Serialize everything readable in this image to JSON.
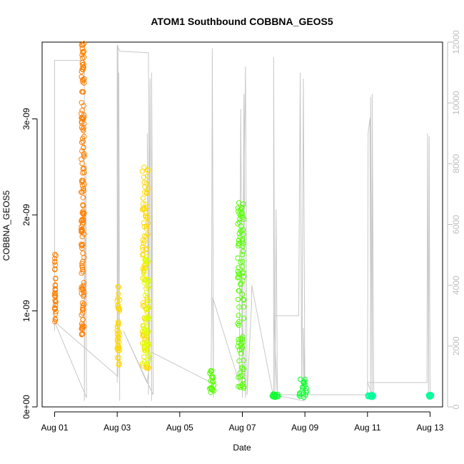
{
  "chart_data": {
    "type": "scatter",
    "title": "ATOM1 Southbound COBBNA_GEOS5",
    "xlabel": "Date",
    "ylabel": "COBBNA_GEOS5",
    "x_unit": "days from Aug 01",
    "xlim": [
      -0.4,
      12.4
    ],
    "ylim": [
      0,
      3.8e-09
    ],
    "ylim_right": [
      0,
      12000
    ],
    "x_ticks": [
      {
        "x": 0,
        "label": "Aug 01"
      },
      {
        "x": 2,
        "label": "Aug 03"
      },
      {
        "x": 4,
        "label": "Aug 05"
      },
      {
        "x": 6,
        "label": "Aug 07"
      },
      {
        "x": 8,
        "label": "Aug 09"
      },
      {
        "x": 10,
        "label": "Aug 11"
      },
      {
        "x": 12,
        "label": "Aug 13"
      }
    ],
    "y_ticks": [
      {
        "y": 0,
        "label": "0e+00"
      },
      {
        "y": 1e-09,
        "label": "1e-09"
      },
      {
        "y": 2e-09,
        "label": "2e-09"
      },
      {
        "y": 3e-09,
        "label": "3e-09"
      }
    ],
    "y_ticks_right": [
      {
        "y": 0,
        "label": "0"
      },
      {
        "y": 2000,
        "label": "2000"
      },
      {
        "y": 4000,
        "label": "4000"
      },
      {
        "y": 6000,
        "label": "6000"
      },
      {
        "y": 8000,
        "label": "8000"
      },
      {
        "y": 10000,
        "label": "10000"
      },
      {
        "y": 12000,
        "label": "12000"
      }
    ],
    "altitude_line_color": "#c8c8c8",
    "altitude_trace": [
      [
        0.0,
        2500
      ],
      [
        0.0,
        11400
      ],
      [
        0.95,
        11400
      ],
      [
        0.95,
        200
      ],
      [
        1.0,
        8000
      ],
      [
        1.02,
        300
      ],
      [
        0.0,
        2800
      ],
      [
        2.02,
        1000
      ],
      [
        2.05,
        11000
      ],
      [
        2.08,
        200
      ],
      [
        2.02,
        11900
      ],
      [
        2.0,
        800
      ],
      [
        2.0,
        11900
      ],
      [
        2.04,
        11800
      ],
      [
        2.08,
        11700
      ],
      [
        3.0,
        11650
      ],
      [
        3.04,
        1500
      ],
      [
        2.96,
        9000
      ],
      [
        3.0,
        400
      ],
      [
        3.05,
        10800
      ],
      [
        3.1,
        200
      ],
      [
        3.1,
        11000
      ],
      [
        3.15,
        400
      ],
      [
        2.2,
        2500
      ],
      [
        2.95,
        800
      ],
      [
        3.1,
        1800
      ],
      [
        5.0,
        800
      ],
      [
        5.02,
        3600
      ],
      [
        5.04,
        11800
      ],
      [
        5.08,
        300
      ],
      [
        5.05,
        3600
      ],
      [
        5.9,
        800
      ],
      [
        5.95,
        9800
      ],
      [
        6.0,
        300
      ],
      [
        6.05,
        10300
      ],
      [
        6.1,
        300
      ],
      [
        6.0,
        3000
      ],
      [
        6.1,
        11200
      ],
      [
        6.15,
        400
      ],
      [
        6.3,
        3500
      ],
      [
        6.3,
        4000
      ],
      [
        7.0,
        300
      ],
      [
        7.0,
        11500
      ],
      [
        7.04,
        300
      ],
      [
        7.08,
        6500
      ],
      [
        7.12,
        300
      ],
      [
        7.0,
        3000
      ],
      [
        7.8,
        3000
      ],
      [
        7.85,
        11000
      ],
      [
        7.9,
        300
      ],
      [
        7.95,
        10800
      ],
      [
        8.0,
        200
      ],
      [
        7.95,
        2600
      ],
      [
        7.96,
        200
      ],
      [
        7.0,
        400
      ],
      [
        10.0,
        400
      ],
      [
        10.02,
        9000
      ],
      [
        10.08,
        9500
      ],
      [
        10.1,
        300
      ],
      [
        10.1,
        10200
      ],
      [
        10.15,
        300
      ],
      [
        10.15,
        10300
      ],
      [
        10.2,
        300
      ],
      [
        10.0,
        800
      ],
      [
        11.9,
        800
      ],
      [
        11.92,
        9000
      ],
      [
        11.95,
        300
      ],
      [
        11.97,
        8900
      ],
      [
        12.0,
        300
      ]
    ],
    "series": [
      {
        "color": "#ff8000",
        "clusters": [
          {
            "x": [
              0.0,
              0.04
            ],
            "y": [
              8.5e-10,
              1.6e-09
            ]
          },
          {
            "x": [
              0.85,
              0.95
            ],
            "y": [
              7.5e-10,
              3.8e-09
            ]
          }
        ]
      },
      {
        "color": "#ffd800",
        "clusters": [
          {
            "x": [
              2.0,
              2.08
            ],
            "y": [
              3.8e-10,
              1.3e-09
            ]
          },
          {
            "x": [
              2.8,
              3.0
            ],
            "y": [
              4e-10,
              2.5e-09
            ]
          }
        ]
      },
      {
        "color": "#ddff00",
        "clusters": [
          {
            "x": [
              2.85,
              3.02
            ],
            "y": [
              4.5e-10,
              1.6e-09
            ]
          }
        ]
      },
      {
        "color": "#55ff00",
        "clusters": [
          {
            "x": [
              4.95,
              5.1
            ],
            "y": [
              1.4e-10,
              3.8e-10
            ]
          },
          {
            "x": [
              5.85,
              6.05
            ],
            "y": [
              1.8e-10,
              2.2e-09
            ]
          }
        ]
      },
      {
        "color": "#11ff33",
        "clusters": [
          {
            "x": [
              6.95,
              7.15
            ],
            "y": [
              1e-10,
              1.4e-10
            ]
          },
          {
            "x": [
              7.8,
              8.05
            ],
            "y": [
              1e-10,
              3e-10
            ]
          }
        ]
      },
      {
        "color": "#00ff99",
        "clusters": [
          {
            "x": [
              10.0,
              10.2
            ],
            "y": [
              1e-10,
              1.3e-10
            ]
          },
          {
            "x": [
              11.95,
              12.05
            ],
            "y": [
              1e-10,
              1.3e-10
            ]
          }
        ]
      }
    ]
  }
}
